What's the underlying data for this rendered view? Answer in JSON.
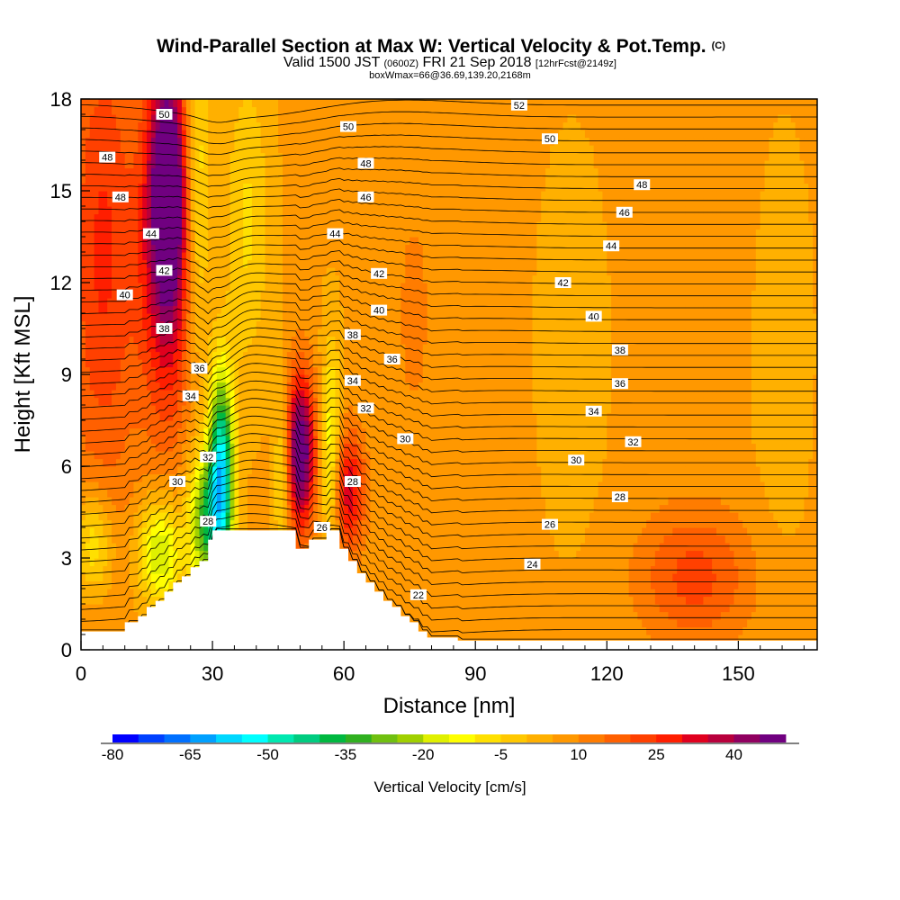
{
  "chart_data": {
    "type": "heatmap",
    "title": "Wind-Parallel Section at Max W: Vertical Velocity & Pot.Temp.",
    "title_suffix": "(C)",
    "subtitle_parts": [
      "Valid 1500 JST ",
      "(0600Z)",
      " FRI 21 Sep 2018 ",
      "[12hrFcst@2149z]"
    ],
    "subtitle2": "boxWmax=66@36.69,139.20,2168m",
    "xlabel": "Distance [nm]",
    "ylabel": "Height [Kft MSL]",
    "xlim": [
      0,
      168
    ],
    "ylim": [
      0,
      18
    ],
    "xticks": [
      0,
      30,
      60,
      90,
      120,
      150
    ],
    "yticks": [
      0,
      3,
      6,
      9,
      12,
      15,
      18
    ],
    "colorbar": {
      "label": "Vertical Velocity [cm/s]",
      "min": -80,
      "max": 50,
      "step": 5,
      "tick_labels": [
        "-80",
        "-65",
        "-50",
        "-35",
        "-20",
        "-5",
        "10",
        "25",
        "40"
      ],
      "colors": [
        "#0000ff",
        "#0040ff",
        "#0070ff",
        "#00a0ff",
        "#00d8ff",
        "#00ffff",
        "#00e8b0",
        "#00cc80",
        "#00b840",
        "#30b020",
        "#70c010",
        "#a0d000",
        "#e0f000",
        "#ffff00",
        "#ffe000",
        "#ffc800",
        "#ffb000",
        "#ff9800",
        "#ff7c00",
        "#ff6000",
        "#ff4000",
        "#ff1e00",
        "#e0001e",
        "#b8003c",
        "#900060",
        "#700080"
      ]
    },
    "terrain": {
      "x": [
        0,
        10,
        10,
        13,
        13,
        15,
        15,
        17,
        17,
        19,
        19,
        21,
        21,
        23,
        23,
        25,
        25,
        27,
        27,
        29,
        29,
        30,
        30,
        49,
        49,
        52,
        52,
        56,
        56,
        59,
        59,
        61,
        61,
        63,
        63,
        65,
        65,
        67,
        67,
        69,
        69,
        71,
        71,
        73,
        73,
        75,
        75,
        77,
        77,
        79,
        79,
        86,
        86,
        168
      ],
      "z": [
        0.6,
        0.6,
        0.9,
        0.9,
        1.1,
        1.1,
        1.4,
        1.4,
        1.6,
        1.6,
        1.9,
        1.9,
        2.2,
        2.2,
        2.4,
        2.4,
        2.7,
        2.7,
        2.9,
        2.9,
        3.6,
        3.6,
        3.9,
        3.9,
        3.3,
        3.3,
        3.6,
        3.6,
        3.9,
        3.9,
        3.3,
        3.3,
        2.9,
        2.9,
        2.5,
        2.5,
        2.2,
        2.2,
        1.9,
        1.9,
        1.6,
        1.6,
        1.4,
        1.4,
        1.1,
        1.1,
        0.9,
        0.9,
        0.6,
        0.6,
        0.4,
        0.4,
        0.3,
        0.3
      ]
    },
    "w_features": [
      {
        "x": 20,
        "z": 15.5,
        "w": 45,
        "sx": 3.2,
        "sz": 2.8
      },
      {
        "x": 20,
        "z": 12.0,
        "w": 26,
        "sx": 4.5,
        "sz": 3.8
      },
      {
        "x": 5,
        "z": 13.0,
        "w": 20,
        "sx": 6.0,
        "sz": 6.0
      },
      {
        "x": 50,
        "z": 6.5,
        "w": 48,
        "sx": 2.4,
        "sz": 1.8
      },
      {
        "x": 61,
        "z": 5.2,
        "w": 28,
        "sx": 2.6,
        "sz": 1.4
      },
      {
        "x": 32,
        "z": 5.6,
        "w": -62,
        "sx": 2.0,
        "sz": 2.4
      },
      {
        "x": 28,
        "z": 4.2,
        "w": -35,
        "sx": 2.5,
        "sz": 1.5
      },
      {
        "x": 18,
        "z": 3.2,
        "w": -28,
        "sx": 3.5,
        "sz": 1.2
      },
      {
        "x": 57,
        "z": 6.4,
        "w": -22,
        "sx": 1.6,
        "sz": 2.5
      },
      {
        "x": 46,
        "z": 5.8,
        "w": -18,
        "sx": 1.4,
        "sz": 2.0
      },
      {
        "x": 26,
        "z": 15.0,
        "w": -22,
        "sx": 2.4,
        "sz": 4.0
      },
      {
        "x": 38,
        "z": 14.0,
        "w": -12,
        "sx": 3.5,
        "sz": 3.5
      },
      {
        "x": 3,
        "z": 3.5,
        "w": -18,
        "sx": 3.0,
        "sz": 1.2
      },
      {
        "x": 140,
        "z": 2.4,
        "w": 16,
        "sx": 9.0,
        "sz": 1.6
      },
      {
        "x": 76,
        "z": 11.0,
        "w": 5,
        "sx": 4.0,
        "sz": 4.0
      },
      {
        "x": 145,
        "z": 15.5,
        "w": 4,
        "sx": 5.0,
        "sz": 3.0
      },
      {
        "x": 112,
        "z": 10.0,
        "w": -3,
        "sx": 6.0,
        "sz": 5.0
      },
      {
        "x": 160,
        "z": 10.0,
        "w": -6,
        "sx": 4.0,
        "sz": 4.0
      }
    ],
    "theta_labels": [
      {
        "text": "52",
        "x": 100,
        "z": 17.8
      },
      {
        "text": "50",
        "x": 19,
        "z": 17.5
      },
      {
        "text": "50",
        "x": 61,
        "z": 17.1
      },
      {
        "text": "50",
        "x": 107,
        "z": 16.7
      },
      {
        "text": "48",
        "x": 6,
        "z": 16.1
      },
      {
        "text": "48",
        "x": 65,
        "z": 15.9
      },
      {
        "text": "48",
        "x": 128,
        "z": 15.2
      },
      {
        "text": "48",
        "x": 9,
        "z": 14.8
      },
      {
        "text": "46",
        "x": 65,
        "z": 14.8
      },
      {
        "text": "46",
        "x": 124,
        "z": 14.3
      },
      {
        "text": "44",
        "x": 16,
        "z": 13.6
      },
      {
        "text": "44",
        "x": 58,
        "z": 13.6
      },
      {
        "text": "44",
        "x": 121,
        "z": 13.2
      },
      {
        "text": "42",
        "x": 19,
        "z": 12.4
      },
      {
        "text": "42",
        "x": 68,
        "z": 12.3
      },
      {
        "text": "42",
        "x": 110,
        "z": 12.0
      },
      {
        "text": "40",
        "x": 10,
        "z": 11.6
      },
      {
        "text": "40",
        "x": 68,
        "z": 11.1
      },
      {
        "text": "40",
        "x": 117,
        "z": 10.9
      },
      {
        "text": "38",
        "x": 19,
        "z": 10.5
      },
      {
        "text": "38",
        "x": 62,
        "z": 10.3
      },
      {
        "text": "38",
        "x": 123,
        "z": 9.8
      },
      {
        "text": "36",
        "x": 27,
        "z": 9.2
      },
      {
        "text": "36",
        "x": 71,
        "z": 9.5
      },
      {
        "text": "36",
        "x": 123,
        "z": 8.7
      },
      {
        "text": "34",
        "x": 25,
        "z": 8.3
      },
      {
        "text": "34",
        "x": 62,
        "z": 8.8
      },
      {
        "text": "34",
        "x": 117,
        "z": 7.8
      },
      {
        "text": "32",
        "x": 29,
        "z": 6.3
      },
      {
        "text": "32",
        "x": 65,
        "z": 7.9
      },
      {
        "text": "32",
        "x": 126,
        "z": 6.8
      },
      {
        "text": "30",
        "x": 22,
        "z": 5.5
      },
      {
        "text": "30",
        "x": 74,
        "z": 6.9
      },
      {
        "text": "30",
        "x": 113,
        "z": 6.2
      },
      {
        "text": "28",
        "x": 62,
        "z": 5.5
      },
      {
        "text": "28",
        "x": 123,
        "z": 5.0
      },
      {
        "text": "28",
        "x": 29,
        "z": 4.2
      },
      {
        "text": "26",
        "x": 55,
        "z": 4.0
      },
      {
        "text": "26",
        "x": 107,
        "z": 4.1
      },
      {
        "text": "24",
        "x": 103,
        "z": 2.8
      },
      {
        "text": "22",
        "x": 77,
        "z": 1.8
      }
    ]
  }
}
